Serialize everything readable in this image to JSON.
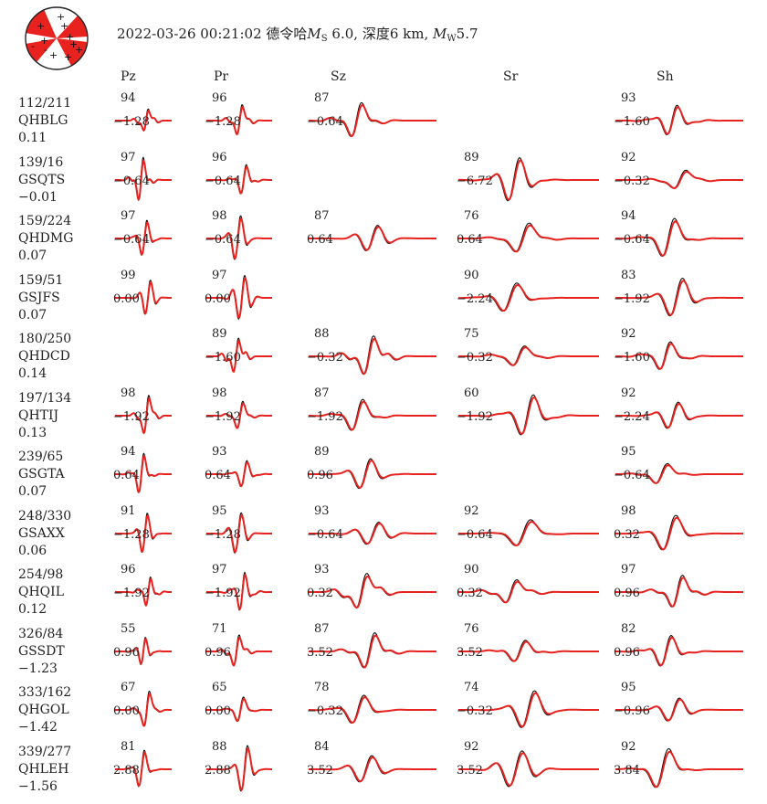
{
  "title": {
    "datetime": "2022-03-26 00:21:02",
    "location": "德令哈",
    "ms_label": "M",
    "ms_sub": "S",
    "ms_value": "6.0",
    "depth_label": "深度",
    "depth_value": "6 km",
    "mw_label": "M",
    "mw_sub": "W",
    "mw_value": "5.7"
  },
  "colors": {
    "observed": "#000000",
    "synthetic": "#e8221e",
    "beachball": "#e8221e"
  },
  "components": [
    "Pz",
    "Pr",
    "Sz",
    "Sr",
    "Sh"
  ],
  "stations": [
    {
      "az_dist": "112/211",
      "name": "QHBLG",
      "shift": "0.11",
      "cells": [
        {
          "cc": "94",
          "ts": "−1.28"
        },
        {
          "cc": "96",
          "ts": "−1.28"
        },
        {
          "cc": "87",
          "ts": "−0.64"
        },
        null,
        {
          "cc": "93",
          "ts": "−1.60"
        }
      ]
    },
    {
      "az_dist": "139/16",
      "name": "GSQTS",
      "shift": "−0.01",
      "cells": [
        {
          "cc": "97",
          "ts": "−0.64"
        },
        {
          "cc": "96",
          "ts": "−0.64"
        },
        null,
        {
          "cc": "89",
          "ts": "−6.72"
        },
        {
          "cc": "92",
          "ts": "−0.32"
        }
      ]
    },
    {
      "az_dist": "159/224",
      "name": "QHDMG",
      "shift": "0.07",
      "cells": [
        {
          "cc": "97",
          "ts": "−0.64"
        },
        {
          "cc": "98",
          "ts": "−0.64"
        },
        {
          "cc": "87",
          "ts": "0.64"
        },
        {
          "cc": "76",
          "ts": "0.64"
        },
        {
          "cc": "94",
          "ts": "−0.64"
        }
      ]
    },
    {
      "az_dist": "159/51",
      "name": "GSJFS",
      "shift": "0.07",
      "cells": [
        {
          "cc": "99",
          "ts": "0.00"
        },
        {
          "cc": "97",
          "ts": "0.00"
        },
        null,
        {
          "cc": "90",
          "ts": "−2.24"
        },
        {
          "cc": "83",
          "ts": "−1.92"
        }
      ]
    },
    {
      "az_dist": "180/250",
      "name": "QHDCD",
      "shift": "0.14",
      "cells": [
        null,
        {
          "cc": "89",
          "ts": "−1.60"
        },
        {
          "cc": "88",
          "ts": "−0.32"
        },
        {
          "cc": "75",
          "ts": "−0.32"
        },
        {
          "cc": "92",
          "ts": "−1.60"
        }
      ]
    },
    {
      "az_dist": "197/134",
      "name": "QHTIJ",
      "shift": "0.13",
      "cells": [
        {
          "cc": "98",
          "ts": "−1.92"
        },
        {
          "cc": "98",
          "ts": "−1.92"
        },
        {
          "cc": "87",
          "ts": "−1.92"
        },
        {
          "cc": "60",
          "ts": "−1.92"
        },
        {
          "cc": "92",
          "ts": "−2.24"
        }
      ]
    },
    {
      "az_dist": "239/65",
      "name": "GSGTA",
      "shift": "0.07",
      "cells": [
        {
          "cc": "94",
          "ts": "0.64"
        },
        {
          "cc": "93",
          "ts": "0.64"
        },
        {
          "cc": "89",
          "ts": "0.96"
        },
        null,
        {
          "cc": "95",
          "ts": "−0.64"
        }
      ]
    },
    {
      "az_dist": "248/330",
      "name": "GSAXX",
      "shift": "0.06",
      "cells": [
        {
          "cc": "91",
          "ts": "−1.28"
        },
        {
          "cc": "95",
          "ts": "−1.28"
        },
        {
          "cc": "93",
          "ts": "−0.64"
        },
        {
          "cc": "92",
          "ts": "−0.64"
        },
        {
          "cc": "98",
          "ts": "0.32"
        }
      ]
    },
    {
      "az_dist": "254/98",
      "name": "QHQIL",
      "shift": "0.12",
      "cells": [
        {
          "cc": "96",
          "ts": "−1.92"
        },
        {
          "cc": "97",
          "ts": "−1.92"
        },
        {
          "cc": "93",
          "ts": "0.32"
        },
        {
          "cc": "90",
          "ts": "0.32"
        },
        {
          "cc": "97",
          "ts": "0.96"
        }
      ]
    },
    {
      "az_dist": "326/84",
      "name": "GSSDT",
      "shift": "−1.23",
      "cells": [
        {
          "cc": "55",
          "ts": "0.96"
        },
        {
          "cc": "71",
          "ts": "0.96"
        },
        {
          "cc": "87",
          "ts": "3.52"
        },
        {
          "cc": "76",
          "ts": "3.52"
        },
        {
          "cc": "82",
          "ts": "0.96"
        }
      ]
    },
    {
      "az_dist": "333/162",
      "name": "QHGOL",
      "shift": "−1.42",
      "cells": [
        {
          "cc": "67",
          "ts": "0.00"
        },
        {
          "cc": "65",
          "ts": "0.00"
        },
        {
          "cc": "78",
          "ts": "−0.32"
        },
        {
          "cc": "74",
          "ts": "−0.32"
        },
        {
          "cc": "95",
          "ts": "−0.96"
        }
      ]
    },
    {
      "az_dist": "339/277",
      "name": "QHLEH",
      "shift": "−1.56",
      "cells": [
        {
          "cc": "81",
          "ts": "2.88"
        },
        {
          "cc": "88",
          "ts": "2.88"
        },
        {
          "cc": "84",
          "ts": "3.52"
        },
        {
          "cc": "92",
          "ts": "3.52"
        },
        {
          "cc": "92",
          "ts": "3.84"
        }
      ]
    }
  ]
}
